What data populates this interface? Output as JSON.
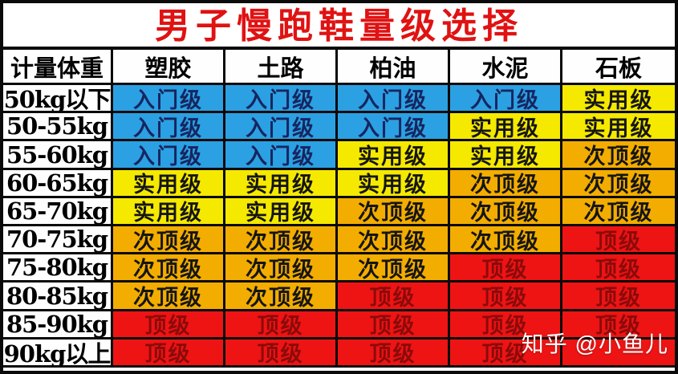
{
  "title": "男子慢跑鞋量级选择",
  "watermark": "知乎 @小鱼儿",
  "columns": [
    "计量体重",
    "塑胶",
    "土路",
    "柏油",
    "水泥",
    "石板"
  ],
  "levels": {
    "entry": {
      "label": "入门级",
      "bg": "#2ba1e3",
      "fg": "#17255f"
    },
    "practical": {
      "label": "实用级",
      "bg": "#f5e900",
      "fg": "#151515"
    },
    "subtop": {
      "label": "次顶级",
      "bg": "#f3ad00",
      "fg": "#151515"
    },
    "top": {
      "label": "顶级",
      "bg": "#ee1414",
      "fg": "#8b0a0a"
    },
    "top_blank": {
      "label": "",
      "bg": "#ee1414",
      "fg": "#8b0a0a"
    }
  },
  "rows": [
    {
      "weight": "50kg以下",
      "cells": [
        "entry",
        "entry",
        "entry",
        "entry",
        "practical"
      ]
    },
    {
      "weight": "50-55kg",
      "cells": [
        "entry",
        "entry",
        "entry",
        "practical",
        "practical"
      ]
    },
    {
      "weight": "55-60kg",
      "cells": [
        "entry",
        "entry",
        "practical",
        "practical",
        "subtop"
      ]
    },
    {
      "weight": "60-65kg",
      "cells": [
        "practical",
        "practical",
        "practical",
        "subtop",
        "subtop"
      ]
    },
    {
      "weight": "65-70kg",
      "cells": [
        "practical",
        "practical",
        "subtop",
        "subtop",
        "subtop"
      ]
    },
    {
      "weight": "70-75kg",
      "cells": [
        "subtop",
        "subtop",
        "subtop",
        "subtop",
        "top"
      ]
    },
    {
      "weight": "75-80kg",
      "cells": [
        "subtop",
        "subtop",
        "subtop",
        "top",
        "top"
      ]
    },
    {
      "weight": "80-85kg",
      "cells": [
        "subtop",
        "subtop",
        "top",
        "top",
        "top"
      ]
    },
    {
      "weight": "85-90kg",
      "cells": [
        "top",
        "top",
        "top",
        "top",
        "top"
      ]
    },
    {
      "weight": "90kg以上",
      "cells": [
        "top",
        "top",
        "top",
        "top",
        "top_blank"
      ]
    }
  ],
  "chart_data": {
    "type": "table",
    "title": "男子慢跑鞋量级选择",
    "columns": [
      "计量体重",
      "塑胶",
      "土路",
      "柏油",
      "水泥",
      "石板"
    ],
    "rows": [
      [
        "50kg以下",
        "入门级",
        "入门级",
        "入门级",
        "入门级",
        "实用级"
      ],
      [
        "50-55kg",
        "入门级",
        "入门级",
        "入门级",
        "实用级",
        "实用级"
      ],
      [
        "55-60kg",
        "入门级",
        "入门级",
        "实用级",
        "实用级",
        "次顶级"
      ],
      [
        "60-65kg",
        "实用级",
        "实用级",
        "实用级",
        "次顶级",
        "次顶级"
      ],
      [
        "65-70kg",
        "实用级",
        "实用级",
        "次顶级",
        "次顶级",
        "次顶级"
      ],
      [
        "70-75kg",
        "次顶级",
        "次顶级",
        "次顶级",
        "次顶级",
        "顶级"
      ],
      [
        "75-80kg",
        "次顶级",
        "次顶级",
        "次顶级",
        "顶级",
        "顶级"
      ],
      [
        "80-85kg",
        "次顶级",
        "次顶级",
        "顶级",
        "顶级",
        "顶级"
      ],
      [
        "85-90kg",
        "顶级",
        "顶级",
        "顶级",
        "顶级",
        "顶级"
      ],
      [
        "90kg以上",
        "顶级",
        "顶级",
        "顶级",
        "顶级",
        ""
      ]
    ],
    "legend": [
      {
        "label": "入门级",
        "color": "#2ba1e3"
      },
      {
        "label": "实用级",
        "color": "#f5e900"
      },
      {
        "label": "次顶级",
        "color": "#f3ad00"
      },
      {
        "label": "顶级",
        "color": "#ee1414"
      }
    ]
  }
}
